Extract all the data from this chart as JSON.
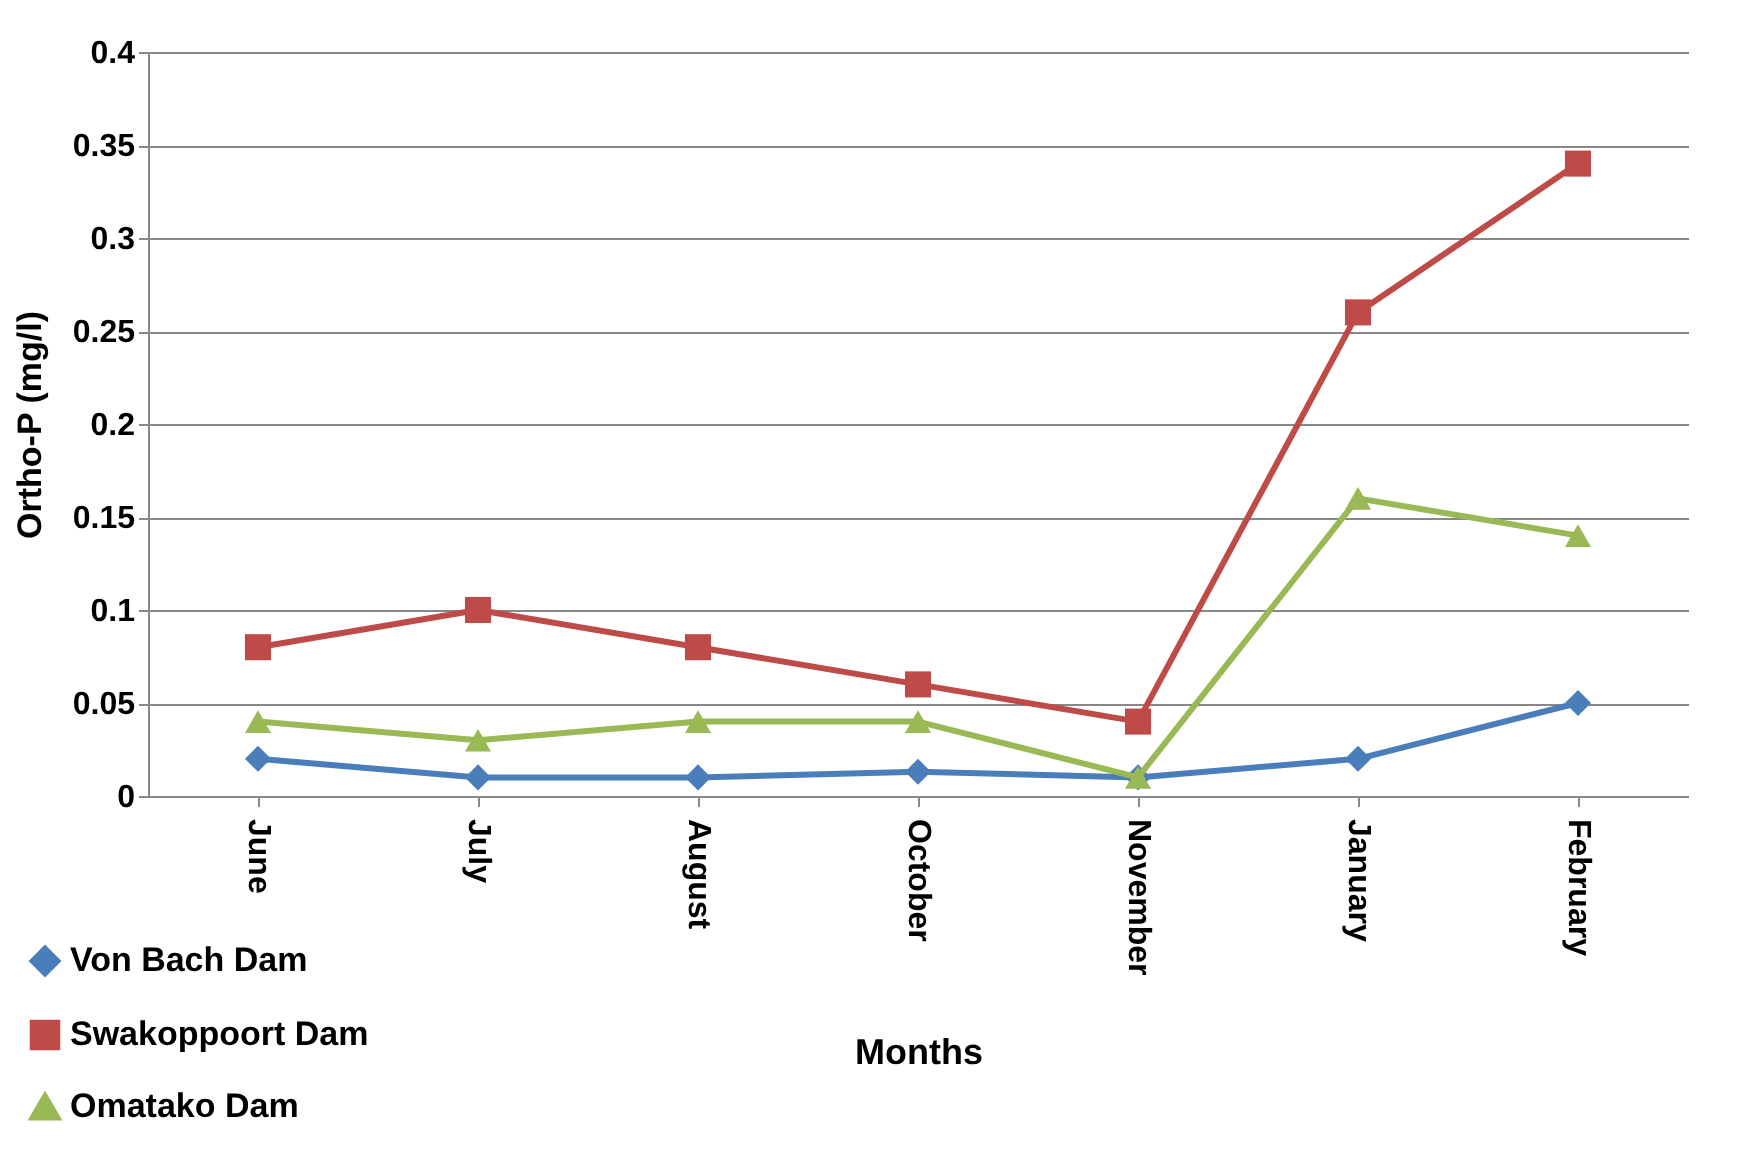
{
  "chart_data": {
    "type": "line",
    "xlabel": "Months",
    "ylabel": "Ortho-P (mg/l)",
    "categories": [
      "June",
      "July",
      "August",
      "October",
      "November",
      "January",
      "February"
    ],
    "series": [
      {
        "name": "Von Bach Dam",
        "color": "#4a7ebb",
        "marker": "diamond",
        "values": [
          0.02,
          0.01,
          0.01,
          0.013,
          0.01,
          0.02,
          0.05
        ]
      },
      {
        "name": "Swakoppoort Dam",
        "color": "#be4b48",
        "marker": "square",
        "values": [
          0.08,
          0.1,
          0.08,
          0.06,
          0.04,
          0.26,
          0.34
        ]
      },
      {
        "name": "Omatako Dam",
        "color": "#98b954",
        "marker": "triangle",
        "values": [
          0.04,
          0.03,
          0.04,
          0.04,
          0.01,
          0.16,
          0.14
        ]
      }
    ],
    "ylim": [
      0,
      0.4
    ],
    "yticks": [
      0,
      0.05,
      0.1,
      0.15,
      0.2,
      0.25,
      0.3,
      0.35,
      0.4
    ],
    "grid": "y",
    "legend": "bottom left",
    "line_style": "solid"
  }
}
